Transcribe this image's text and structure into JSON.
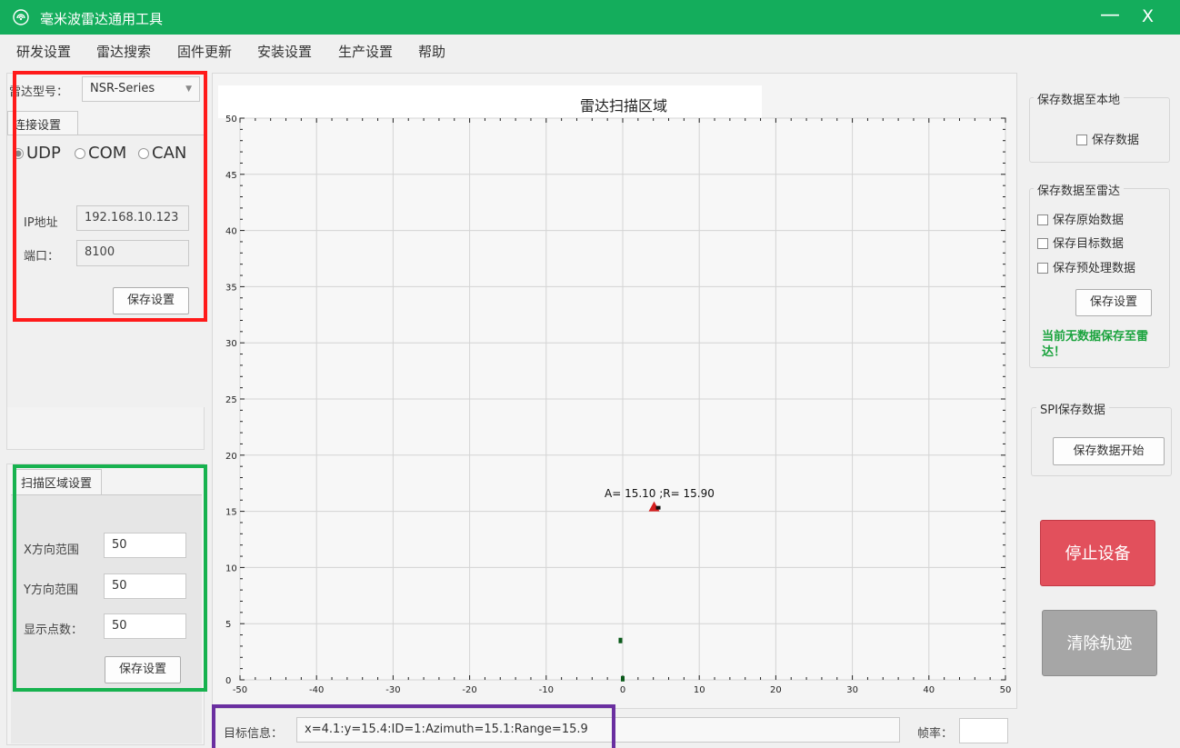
{
  "app": {
    "title": "毫米波雷达通用工具",
    "minimize": "—",
    "close": "X"
  },
  "menu": [
    "研发设置",
    "雷达搜索",
    "固件更新",
    "安装设置",
    "生产设置",
    "帮助"
  ],
  "left": {
    "radar_model_label": "雷达型号：",
    "radar_model_value": "NSR-Series",
    "connection_tab": "连接设置",
    "protocols": [
      {
        "label": "UDP",
        "selected": true
      },
      {
        "label": "COM",
        "selected": false
      },
      {
        "label": "CAN",
        "selected": false
      }
    ],
    "ip_label": "IP地址",
    "ip_value": "192.168.10.123",
    "port_label": "端口：",
    "port_value": "8100",
    "save_button": "保存设置",
    "scan_tab": "扫描区域设置",
    "x_range_label": "X方向范围",
    "x_range_value": "50",
    "y_range_label": "Y方向范围",
    "y_range_value": "50",
    "points_label": "显示点数：",
    "points_value": "50",
    "scan_save_button": "保存设置"
  },
  "chart": {
    "target_label_text": "A= 15.10 ;R= 15.90"
  },
  "chart_data": {
    "type": "scatter",
    "title": "雷达扫描区域",
    "xlim": [
      -50,
      50
    ],
    "ylim": [
      0,
      50
    ],
    "x_ticks": [
      -50,
      -40,
      -30,
      -20,
      -10,
      0,
      10,
      20,
      30,
      40,
      50
    ],
    "y_ticks": [
      0,
      5,
      10,
      15,
      20,
      25,
      30,
      35,
      40,
      45,
      50
    ],
    "grid": true,
    "points": [
      {
        "x": 4.1,
        "y": 15.4,
        "marker": "triangle",
        "color": "#d42020",
        "label": "A= 15.10 ;R= 15.90"
      },
      {
        "x": -0.3,
        "y": 3.5,
        "marker": "square",
        "color": "#0a5a1a"
      },
      {
        "x": 0,
        "y": 0.1,
        "marker": "square",
        "color": "#0a5a1a"
      }
    ]
  },
  "bottom": {
    "target_info_label": "目标信息：",
    "target_info_value": "x=4.1:y=15.4:ID=1:Azimuth=15.1:Range=15.9",
    "frame_rate_label": "帧率：",
    "frame_rate_value": ""
  },
  "right": {
    "local_group_title": "保存数据至本地",
    "local_save_check": "保存数据",
    "radar_group_title": "保存数据至雷达",
    "save_raw": "保存原始数据",
    "save_target": "保存目标数据",
    "save_preprocess": "保存预处理数据",
    "radar_save_button": "保存设置",
    "radar_status_note": "当前无数据保存至雷达！",
    "spi_group_title": "SPI保存数据",
    "spi_start_button": "保存数据开始",
    "stop_button": "停止设备",
    "clear_button": "清除轨迹"
  },
  "colors": {
    "titlebar": "#14ad5c",
    "stop_button": "#e2505c",
    "clear_button": "#a6a6a6",
    "highlight_red": "#ff1a1a",
    "highlight_green": "#17b24f",
    "highlight_purple": "#6a2fa0"
  }
}
